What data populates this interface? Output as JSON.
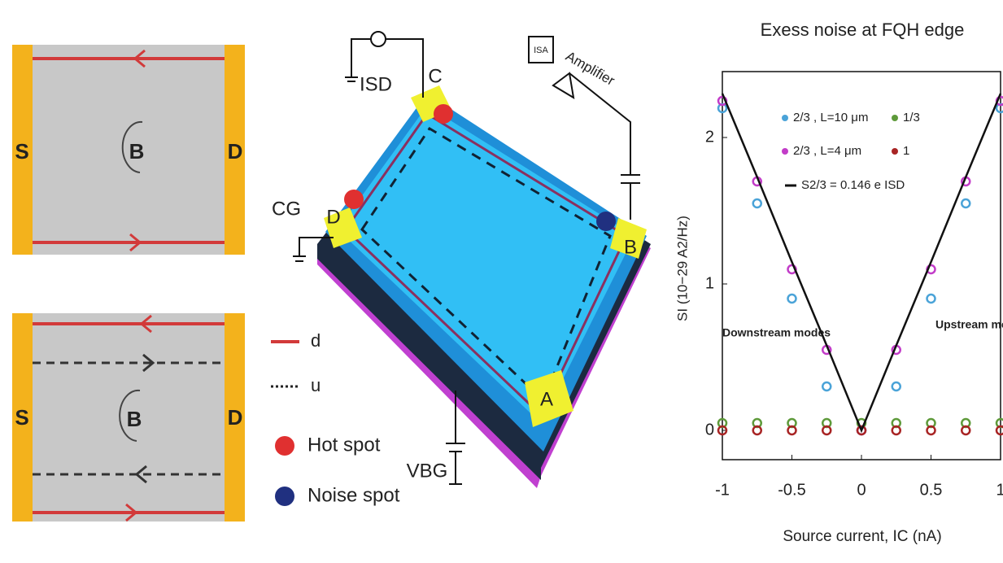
{
  "panels": [
    {
      "source": "S",
      "drain": "D",
      "field": "B"
    },
    {
      "source": "S",
      "drain": "D",
      "field": "B"
    }
  ],
  "device": {
    "contacts": [
      "C",
      "D",
      "B",
      "A"
    ],
    "gate": "CG",
    "current": "ISD",
    "amplifier": "Amplifier",
    "box": "ISA",
    "backgate": "VBG",
    "legend": [
      "d",
      "u",
      "Hot spot",
      "Noise spot"
    ]
  },
  "chart_data": {
    "type": "scatter",
    "title": "Exess noise at FQH edge",
    "x_label": "Source current, IC (nA)",
    "y_label": "SI (10−29 A2/Hz)",
    "x": [
      -1,
      -0.75,
      -0.5,
      -0.25,
      0,
      0.25,
      0.5,
      0.75,
      1
    ],
    "series": [
      {
        "name": "2/3 , L=10 μm",
        "color": "#4aa3d8",
        "mode": "markers",
        "values": [
          2.2,
          1.55,
          0.9,
          0.3,
          0,
          0.3,
          0.9,
          1.55,
          2.2
        ]
      },
      {
        "name": "1/3",
        "color": "#5e9a3a",
        "mode": "markers",
        "values": [
          0.05,
          0.05,
          0.05,
          0.05,
          0.05,
          0.05,
          0.05,
          0.05,
          0.05
        ]
      },
      {
        "name": "2/3 , L=4 μm",
        "color": "#c23cc8",
        "mode": "markers",
        "values": [
          2.25,
          1.7,
          1.1,
          0.55,
          0,
          0.55,
          1.1,
          1.7,
          2.25
        ]
      },
      {
        "name": "1",
        "color": "#a82424",
        "mode": "markers",
        "values": [
          0,
          0,
          0,
          0,
          0,
          0,
          0,
          0,
          0
        ]
      },
      {
        "name": "S2/3 = 0.146 e ISD",
        "color": "#111111",
        "mode": "line",
        "values": [
          2.3,
          1.73,
          1.15,
          0.58,
          0,
          0.58,
          1.15,
          1.73,
          2.3
        ]
      }
    ],
    "annotations": [
      "Downstream modes",
      "Upstream modes"
    ],
    "xlim": [
      -1,
      1
    ],
    "ylim": [
      -0.2,
      2.45
    ],
    "xticks": [
      -1,
      -0.5,
      0,
      0.5,
      1
    ],
    "yticks": [
      0,
      1,
      2
    ]
  }
}
